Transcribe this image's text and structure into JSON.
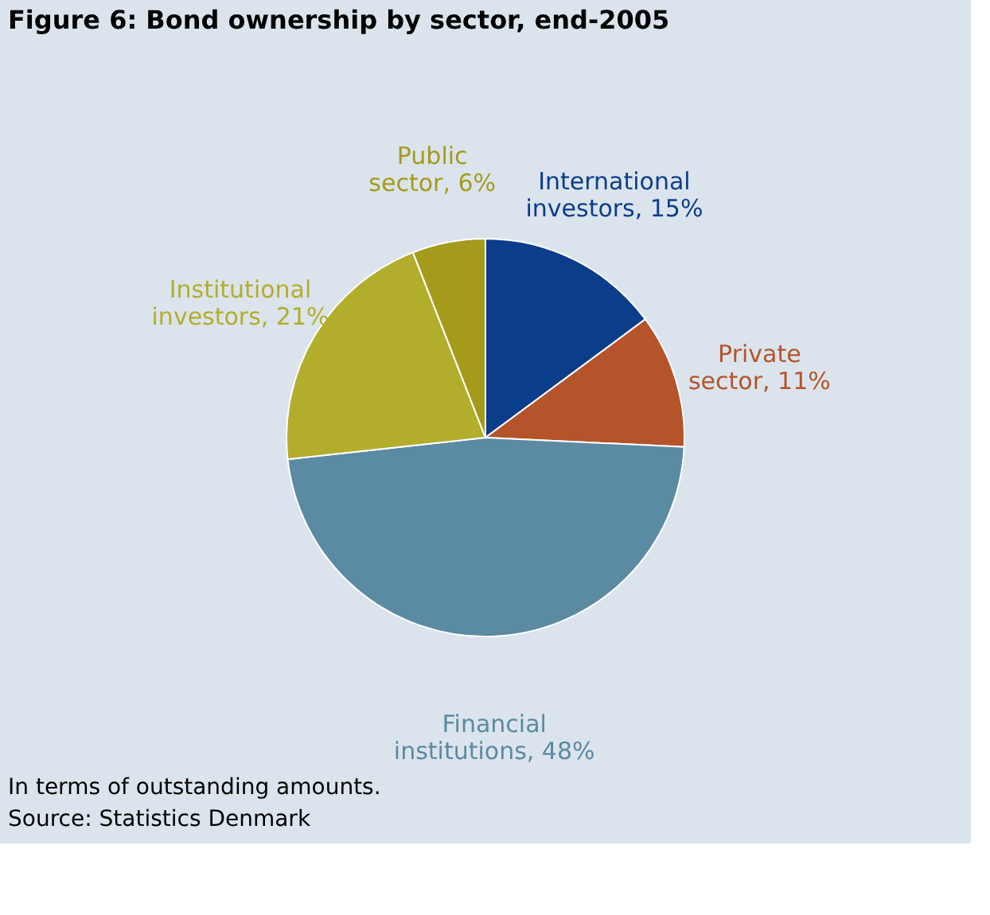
{
  "chart_data": {
    "type": "pie",
    "title": "Figure 6: Bond ownership by sector, end-2005",
    "categories": [
      "International investors",
      "Private sector",
      "Financial institutions",
      "Institutional investors",
      "Public sector"
    ],
    "values": [
      15,
      11,
      48,
      21,
      6
    ],
    "value_labels": [
      "15%",
      "11%",
      "48%",
      "21%",
      "6%"
    ],
    "colors": [
      "#0a3d8a",
      "#b5532a",
      "#5b8aa3",
      "#b3ad2c",
      "#a59a1c"
    ],
    "legend": false,
    "annotations": [
      "In terms of outstanding amounts.",
      "Source: Statistics Denmark"
    ]
  }
}
